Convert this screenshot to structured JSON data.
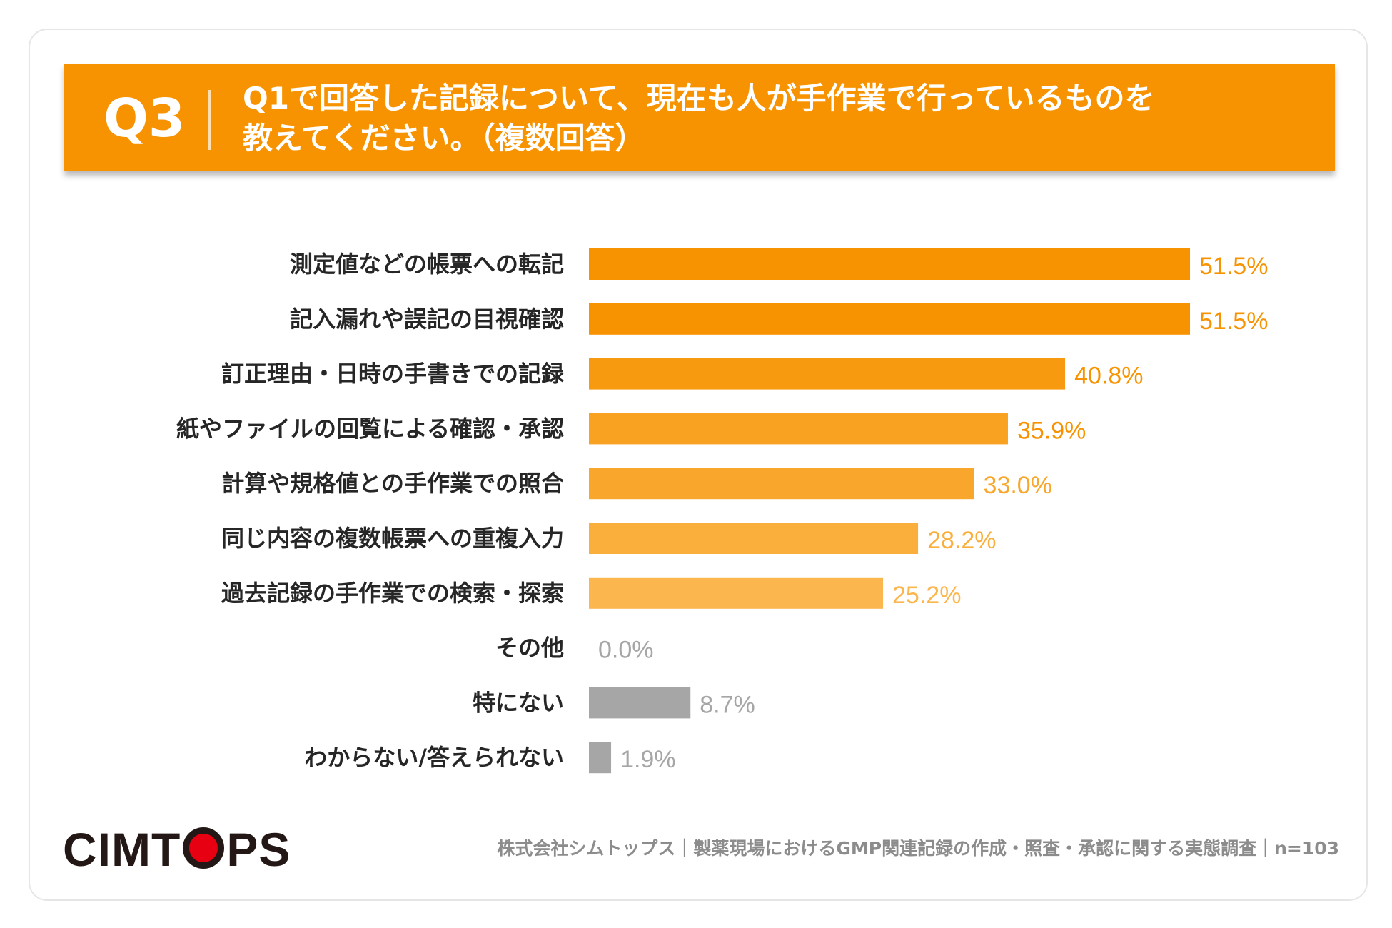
{
  "question": {
    "number": "Q3",
    "line1": "Q1で回答した記録について、現在も人が手作業で行っているものを",
    "line2": "教えてください。（複数回答）"
  },
  "chart_data": {
    "type": "bar",
    "orientation": "horizontal",
    "categories": [
      "測定値などの帳票への転記",
      "記入漏れや誤記の目視確認",
      "訂正理由・日時の手書きでの記録",
      "紙やファイルの回覧による確認・承認",
      "計算や規格値との手作業での照合",
      "同じ内容の複数帳票への重複入力",
      "過去記録の手作業での検索・探索",
      "その他",
      "特にない",
      "わからない/答えられない"
    ],
    "values": [
      51.5,
      51.5,
      40.8,
      35.9,
      33.0,
      28.2,
      25.2,
      0.0,
      8.7,
      1.9
    ],
    "labels": [
      "51.5%",
      "51.5%",
      "40.8%",
      "35.9%",
      "33.0%",
      "28.2%",
      "25.2%",
      "0.0%",
      "8.7%",
      "1.9%"
    ],
    "bar_colors": [
      "#f79300",
      "#f79300",
      "#f89a10",
      "#f9a120",
      "#f9a72c",
      "#faaf3d",
      "#fbb64d",
      "#a6a6a6",
      "#a6a6a6",
      "#a6a6a6"
    ],
    "label_colors": [
      "#f79300",
      "#f79300",
      "#f79300",
      "#f79300",
      "#f9a72c",
      "#faaf3d",
      "#fbb64d",
      "#a6a6a6",
      "#a6a6a6",
      "#a6a6a6"
    ],
    "xlim": [
      0,
      60
    ],
    "grid": false,
    "legend": "none"
  },
  "footer": {
    "logo_left": "CIM",
    "logo_t": "T",
    "logo_right": "PS",
    "source": "株式会社シムトップス｜製薬現場におけるGMP関連記録の作成・照査・承認に関する実態調査｜n=103"
  },
  "colors": {
    "accent": "#f79300",
    "gray": "#a6a6a6",
    "logo_red": "#e60012"
  }
}
